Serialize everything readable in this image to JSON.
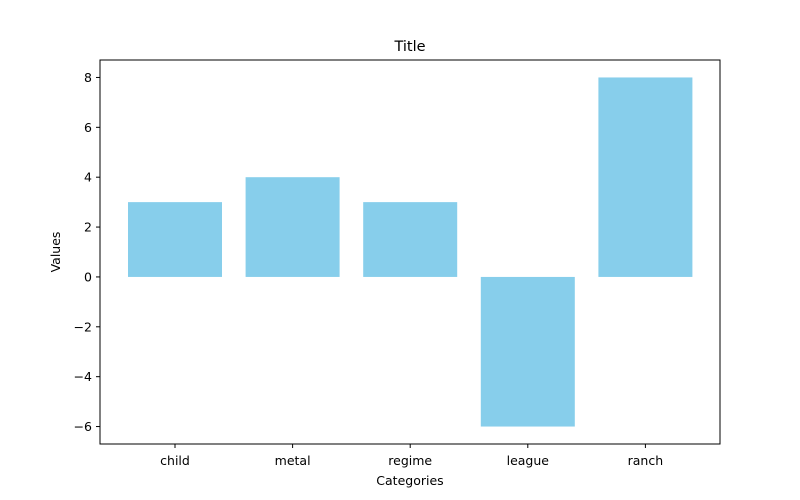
{
  "chart_data": {
    "type": "bar",
    "title": "Title",
    "xlabel": "Categories",
    "ylabel": "Values",
    "categories": [
      "child",
      "metal",
      "regime",
      "league",
      "ranch"
    ],
    "values": [
      3,
      4,
      3,
      -6,
      8
    ],
    "ylim": [
      -6.7,
      8.7
    ],
    "yticks": [
      -6,
      -4,
      -2,
      0,
      2,
      4,
      6,
      8
    ],
    "ytick_labels": [
      "−6",
      "−4",
      "−2",
      "0",
      "2",
      "4",
      "6",
      "8"
    ],
    "bar_color": "#87CEEB",
    "grid": false,
    "legend": "none"
  }
}
